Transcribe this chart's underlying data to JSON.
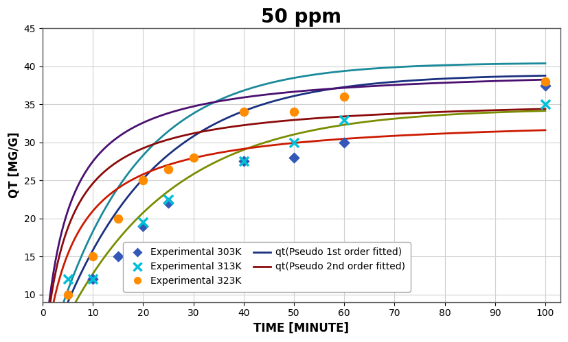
{
  "title": "50 ppm",
  "xlabel": "TIME [MINUTE]",
  "ylabel": "QT [MG/G]",
  "xlim": [
    3,
    103
  ],
  "ylim": [
    9,
    45
  ],
  "xticks": [
    0,
    10,
    20,
    30,
    40,
    50,
    60,
    70,
    80,
    90,
    100
  ],
  "yticks": [
    10,
    15,
    20,
    25,
    30,
    35,
    40,
    45
  ],
  "exp_303K_x": [
    10,
    15,
    20,
    25,
    40,
    50,
    60,
    100
  ],
  "exp_303K_y": [
    12.0,
    15.0,
    19.0,
    22.0,
    27.5,
    28.0,
    30.0,
    37.5
  ],
  "exp_313K_x": [
    5,
    10,
    20,
    25,
    40,
    50,
    60,
    100
  ],
  "exp_313K_y": [
    12.0,
    12.0,
    19.5,
    22.5,
    27.5,
    30.0,
    33.0,
    35.0
  ],
  "exp_323K_x": [
    5,
    10,
    15,
    20,
    25,
    30,
    40,
    50,
    60,
    100
  ],
  "exp_323K_y": [
    10.0,
    15.0,
    20.0,
    25.0,
    26.5,
    28.0,
    34.0,
    34.0,
    36.0,
    38.0
  ],
  "background_color": "#ffffff",
  "grid_color": "#d0d0d0",
  "title_fontsize": 20,
  "axis_label_fontsize": 12,
  "tick_fontsize": 10,
  "legend_fontsize": 10
}
